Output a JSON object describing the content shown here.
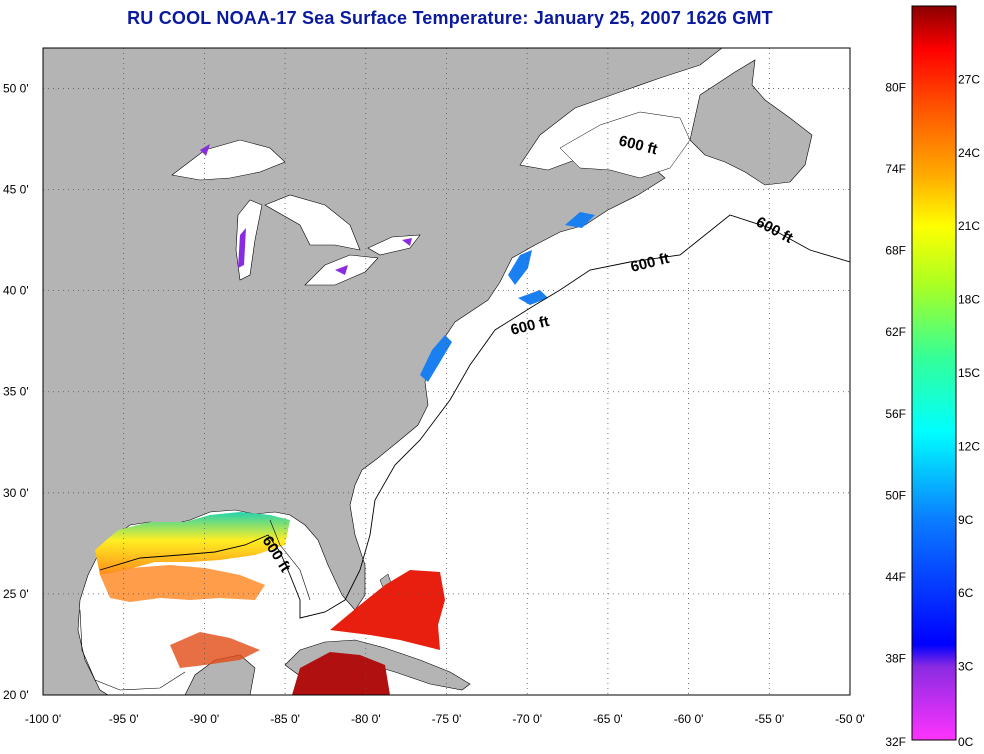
{
  "title": "RU COOL  NOAA-17  Sea Surface Temperature:  January 25, 2007 1626 GMT",
  "map": {
    "lon_range": [
      -100,
      -50
    ],
    "lat_range": [
      20,
      52
    ],
    "lon_ticks": [
      -100,
      -95,
      -90,
      -85,
      -80,
      -75,
      -70,
      -65,
      -60,
      -55,
      -50
    ],
    "lon_labels": [
      "-100 0'",
      "-95 0'",
      "-90 0'",
      "-85 0'",
      "-80 0'",
      "-75 0'",
      "-70 0'",
      "-65 0'",
      "-60 0'",
      "-55 0'",
      "-50 0'"
    ],
    "lat_ticks": [
      20,
      25,
      30,
      35,
      40,
      45,
      50
    ],
    "lat_labels": [
      "20 0'",
      "25 0'",
      "30 0'",
      "35 0'",
      "40 0'",
      "45 0'",
      "50 0'"
    ],
    "grid": "dotted",
    "contour_labels": [
      "600 ft",
      "600 ft",
      "600 ft",
      "600 ft",
      "600 ft"
    ]
  },
  "colorbar": {
    "fahrenheit_labels": [
      "32F",
      "38F",
      "44F",
      "50F",
      "56F",
      "62F",
      "68F",
      "74F",
      "80F"
    ],
    "celsius_labels": [
      "0C",
      "3C",
      "6C",
      "9C",
      "12C",
      "15C",
      "18C",
      "21C",
      "24C",
      "27C"
    ],
    "colors": [
      "#ff33ff",
      "#8a2be2",
      "#0000ff",
      "#0a7dff",
      "#00ffff",
      "#33ff99",
      "#aaff22",
      "#ffff00",
      "#ffaa00",
      "#ff5500",
      "#ff0000",
      "#8b0000"
    ]
  }
}
